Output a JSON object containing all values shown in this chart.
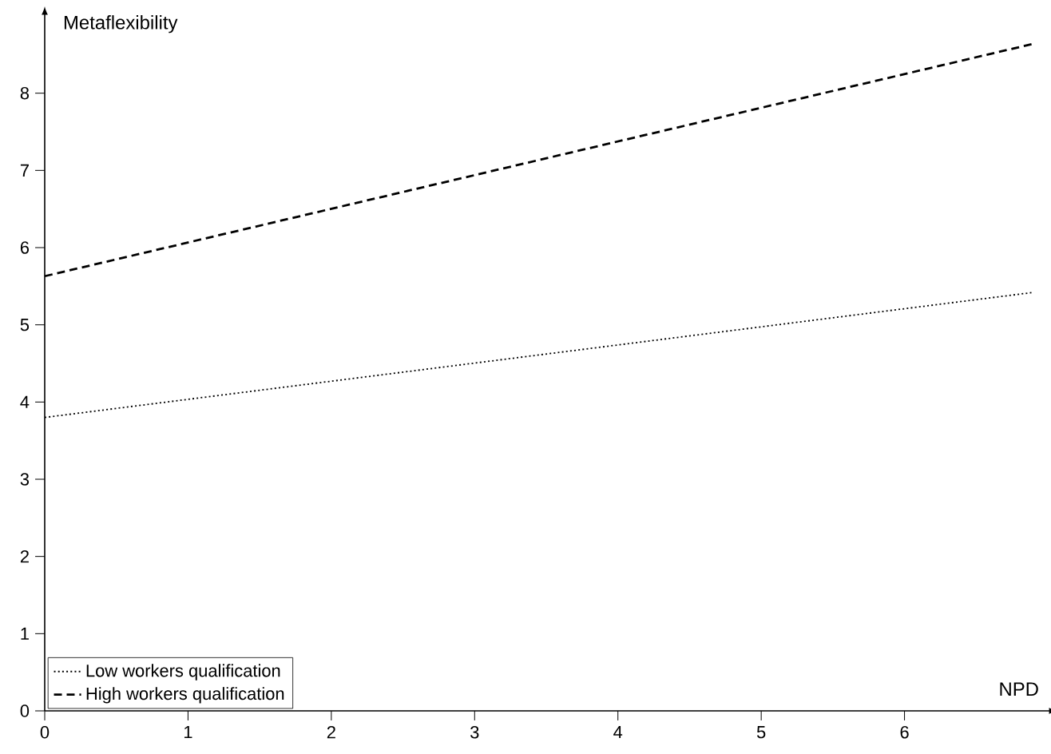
{
  "chart_data": {
    "type": "line",
    "xlabel": "NPD",
    "ylabel": "Metaflexibility",
    "x": [
      0,
      6.9
    ],
    "series": [
      {
        "name": "Low workers qualification",
        "color": "#000000",
        "values": [
          3.8,
          5.42
        ],
        "line_style": "dotted"
      },
      {
        "name": "High workers qualification",
        "color": "#000000",
        "values": [
          5.63,
          8.64
        ],
        "line_style": "dashed"
      }
    ],
    "xlim": [
      0,
      7
    ],
    "ylim": [
      0,
      9
    ],
    "xticks": [
      0,
      1,
      2,
      3,
      4,
      5,
      6
    ],
    "yticks": [
      0,
      1,
      2,
      3,
      4,
      5,
      6,
      7,
      8
    ],
    "grid": false,
    "legend": "bottom left",
    "marker": "none"
  }
}
